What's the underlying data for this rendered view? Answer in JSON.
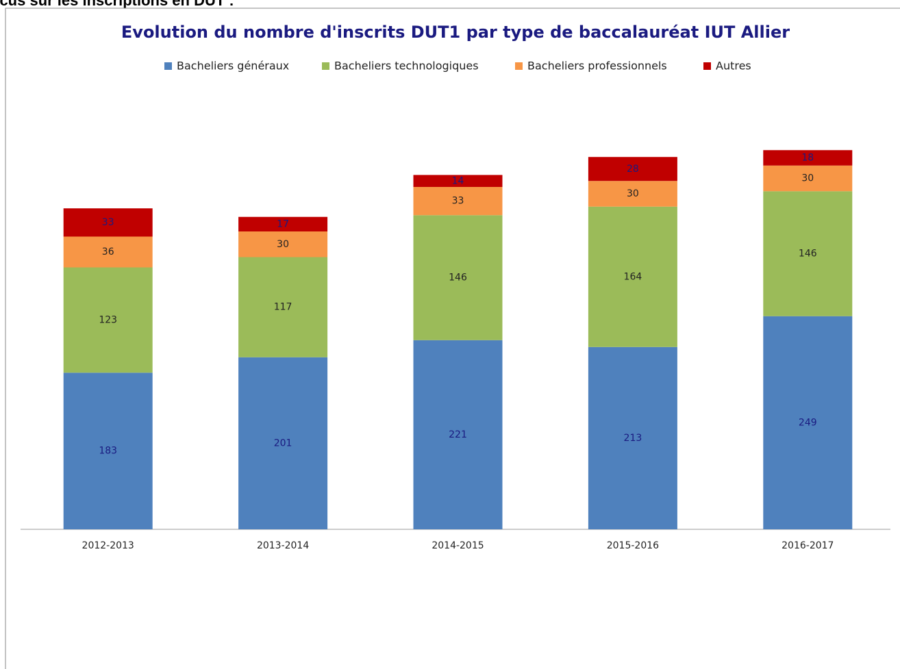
{
  "heading": "ocus sur les inscriptions en DUT :",
  "chart_data": {
    "type": "stacked_bar",
    "title": "Evolution du nombre d'inscrits DUT1 par type de baccalauréat IUT Allier",
    "categories": [
      "2012-2013",
      "2013-2014",
      "2014-2015",
      "2015-2016",
      "2016-2017"
    ],
    "series": [
      {
        "name": "Bacheliers généraux",
        "color": "#4f81bd",
        "values": [
          183,
          201,
          221,
          213,
          249
        ]
      },
      {
        "name": "Bacheliers technologiques",
        "color": "#9bbb59",
        "values": [
          123,
          117,
          146,
          164,
          146
        ]
      },
      {
        "name": "Bacheliers professionnels",
        "color": "#f79646",
        "values": [
          36,
          30,
          33,
          30,
          30
        ]
      },
      {
        "name": "Autres",
        "color": "#c00000",
        "values": [
          33,
          17,
          14,
          28,
          18
        ]
      }
    ],
    "ylim": [
      0,
      560
    ],
    "legend": "top"
  }
}
